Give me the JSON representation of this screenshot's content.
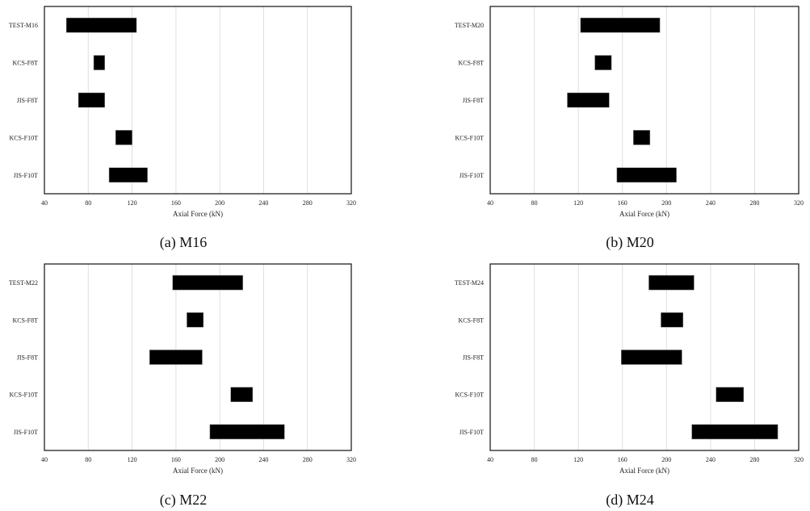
{
  "chart_data": [
    {
      "type": "bar",
      "orientation": "horizontal-floating",
      "caption": "(a) M16",
      "xlabel": "Axial Force (kN)",
      "xlim": [
        40,
        320
      ],
      "xticks": [
        40,
        80,
        120,
        160,
        200,
        240,
        280,
        320
      ],
      "grid": "vertical",
      "bar_color": "#000000",
      "categories": [
        "TEST-M16",
        "KCS-F8T",
        "JIS-F8T",
        "KCS-F10T",
        "JIS-F10T"
      ],
      "ranges": [
        [
          60,
          124
        ],
        [
          85,
          95
        ],
        [
          71,
          95
        ],
        [
          105,
          120
        ],
        [
          99,
          134
        ]
      ]
    },
    {
      "type": "bar",
      "orientation": "horizontal-floating",
      "caption": "(b) M20",
      "xlabel": "Axial Force (kN)",
      "xlim": [
        40,
        320
      ],
      "xticks": [
        40,
        80,
        120,
        160,
        200,
        240,
        280,
        320
      ],
      "grid": "vertical",
      "bar_color": "#000000",
      "categories": [
        "TEST-M20",
        "KCS-F8T",
        "JIS-F8T",
        "KCS-F10T",
        "JIS-F10T"
      ],
      "ranges": [
        [
          122,
          194
        ],
        [
          135,
          150
        ],
        [
          110,
          148
        ],
        [
          170,
          185
        ],
        [
          155,
          209
        ]
      ]
    },
    {
      "type": "bar",
      "orientation": "horizontal-floating",
      "caption": "(c) M22",
      "xlabel": "Axial Force (kN)",
      "xlim": [
        40,
        320
      ],
      "xticks": [
        40,
        80,
        120,
        160,
        200,
        240,
        280,
        320
      ],
      "grid": "vertical",
      "bar_color": "#000000",
      "categories": [
        "TEST-M22",
        "KCS-F8T",
        "JIS-F8T",
        "KCS-F10T",
        "JIS-F10T"
      ],
      "ranges": [
        [
          157,
          221
        ],
        [
          170,
          185
        ],
        [
          136,
          184
        ],
        [
          210,
          230
        ],
        [
          191,
          259
        ]
      ]
    },
    {
      "type": "bar",
      "orientation": "horizontal-floating",
      "caption": "(d) M24",
      "xlabel": "Axial Force (kN)",
      "xlim": [
        40,
        320
      ],
      "xticks": [
        40,
        80,
        120,
        160,
        200,
        240,
        280,
        320
      ],
      "grid": "vertical",
      "bar_color": "#000000",
      "categories": [
        "TEST-M24",
        "KCS-F8T",
        "JIS-F8T",
        "KCS-F10T",
        "JIS-F10T"
      ],
      "ranges": [
        [
          184,
          225
        ],
        [
          195,
          215
        ],
        [
          159,
          214
        ],
        [
          245,
          270
        ],
        [
          223,
          301
        ]
      ]
    }
  ]
}
